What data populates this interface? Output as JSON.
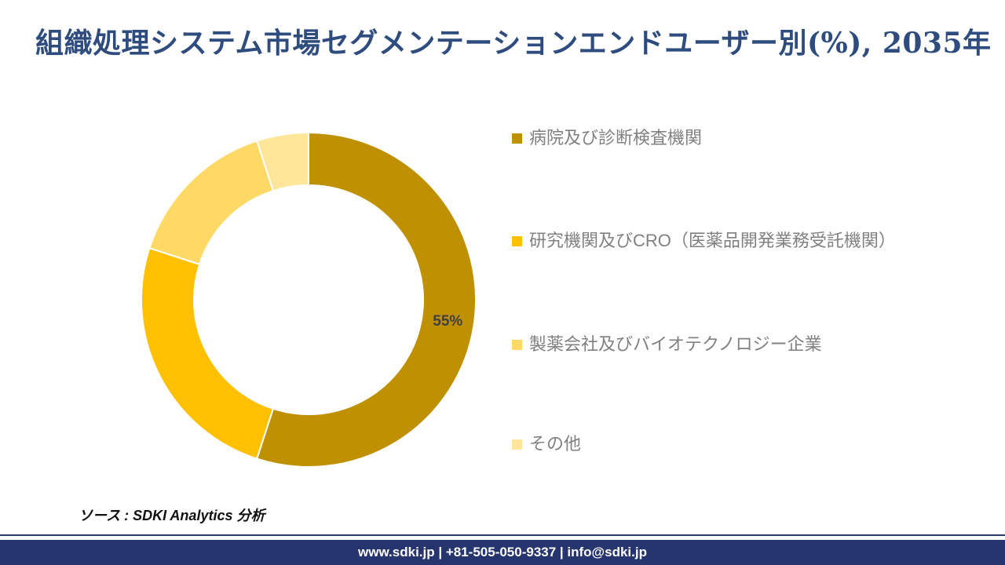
{
  "title": "組織処理システム市場セグメンテーションエンドユーザー別(%), 2035年",
  "chart_data": {
    "type": "pie",
    "subtype": "donut",
    "title": "組織処理システム市場セグメンテーションエンドユーザー別(%), 2035年",
    "categories": [
      "病院及び診断検査機関",
      "研究機関及びCRO（医薬品開発業務受託機関）",
      "製薬会社及びバイオテクノロジー企業",
      "その他"
    ],
    "values": [
      55,
      25,
      15,
      5
    ],
    "unit": "%",
    "colors": [
      "#BF9000",
      "#FFC000",
      "#FFD966",
      "#FFE699"
    ],
    "data_labels": [
      "55%",
      "",
      "",
      ""
    ],
    "data_label_color": "#404040",
    "legend_position": "right",
    "start_angle_deg": 0,
    "direction": "clockwise",
    "slice_border_color": "#FFFFFF"
  },
  "source_note": "ソース : SDKI Analytics 分析",
  "footer": {
    "text": "www.sdki.jp | +81-505-050-9337 | info@sdki.jp",
    "background": "#27356E"
  },
  "styles": {
    "title_color": "#2E4C7E",
    "legend_text_color": "#808080"
  }
}
